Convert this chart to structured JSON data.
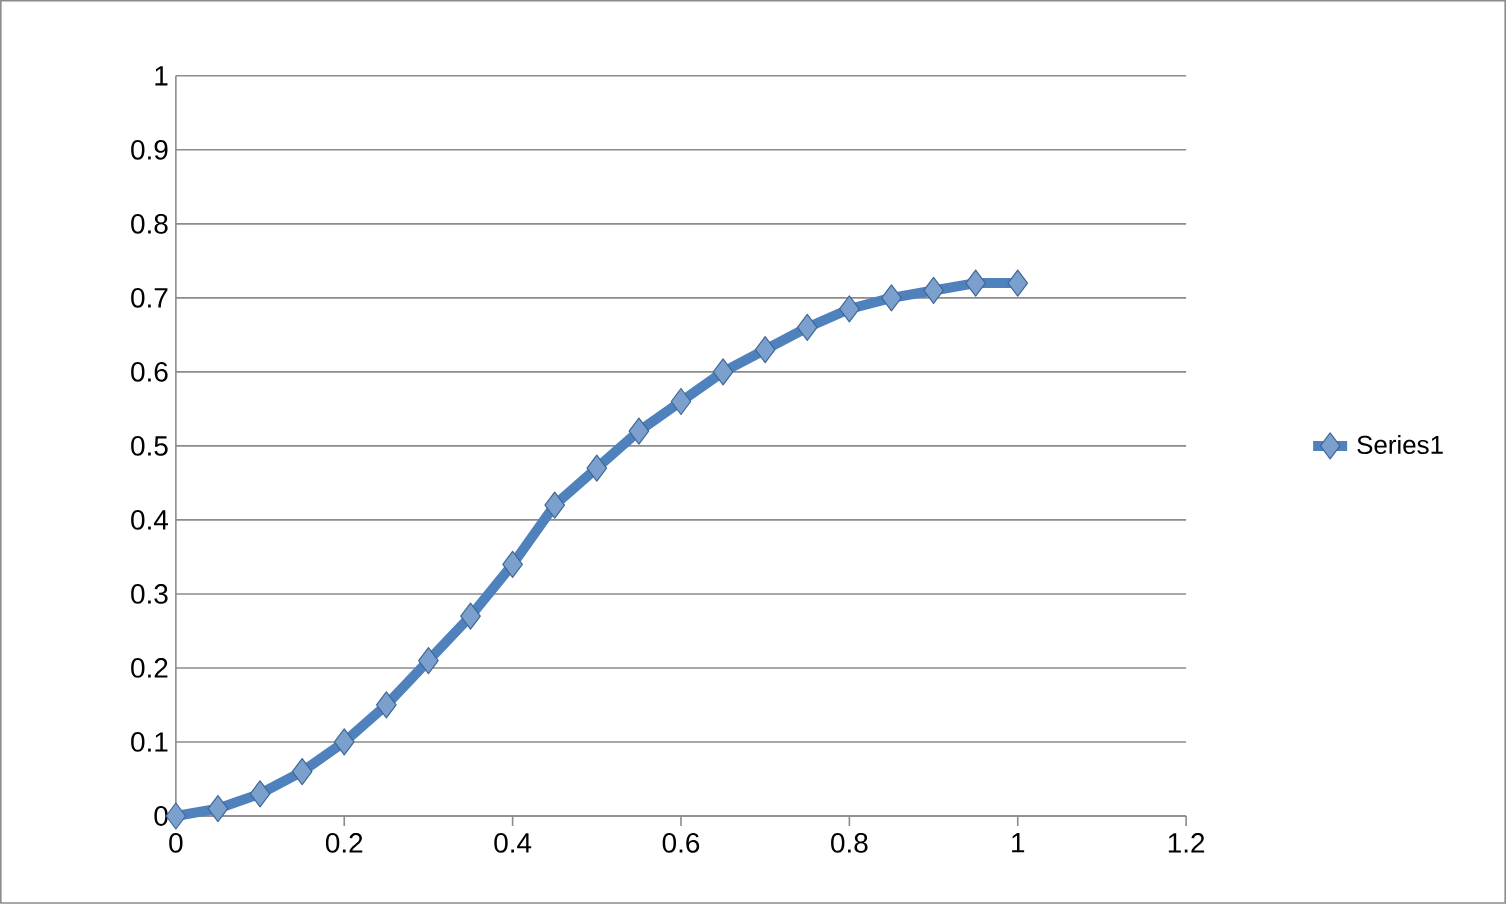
{
  "chart_data": {
    "type": "line",
    "x": [
      0,
      0.05,
      0.1,
      0.15,
      0.2,
      0.25,
      0.3,
      0.35,
      0.4,
      0.45,
      0.5,
      0.55,
      0.6,
      0.65,
      0.7,
      0.75,
      0.8,
      0.85,
      0.9,
      0.95,
      1.0
    ],
    "series": [
      {
        "name": "Series1",
        "color": "#4f81bd",
        "values": [
          0,
          0.01,
          0.03,
          0.06,
          0.1,
          0.15,
          0.21,
          0.27,
          0.34,
          0.42,
          0.47,
          0.52,
          0.56,
          0.6,
          0.63,
          0.66,
          0.685,
          0.7,
          0.71,
          0.72,
          0.72
        ]
      }
    ],
    "xlim": [
      0,
      1.2
    ],
    "xticks": [
      0,
      0.2,
      0.4,
      0.6,
      0.8,
      1,
      1.2
    ],
    "ylim": [
      0,
      1
    ],
    "yticks": [
      0,
      0.1,
      0.2,
      0.3,
      0.4,
      0.5,
      0.6,
      0.7,
      0.8,
      0.9,
      1
    ],
    "grid": "y",
    "legend": "right",
    "marker": "diamond",
    "line_style": "solid"
  }
}
